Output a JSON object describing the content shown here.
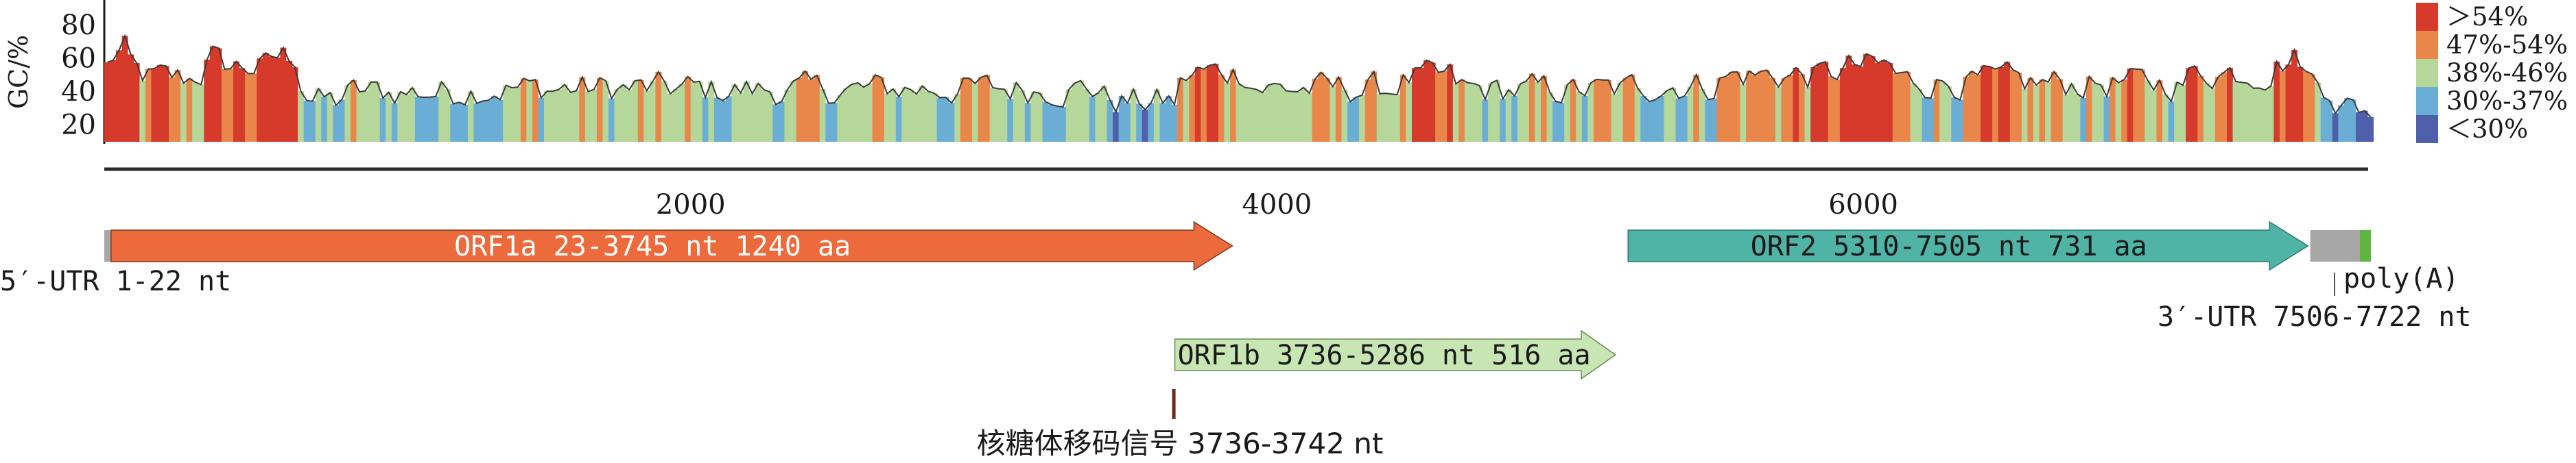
{
  "chart_data": {
    "type": "area",
    "ylabel": "GC/%",
    "y_ticks": [
      "20",
      "40",
      "60",
      "80"
    ],
    "x_ticks": [
      "2000",
      "4000",
      "6000"
    ],
    "xlim": [
      0,
      7722
    ],
    "ylim": [
      10,
      92
    ],
    "legend": {
      "placement": "right",
      "entries": [
        {
          "label": "＞54%",
          "color": "#d63a2a"
        },
        {
          "label": "47%-54%",
          "color": "#e9874a"
        },
        {
          "label": "38%-46%",
          "color": "#b5d79a"
        },
        {
          "label": "30%-37%",
          "color": "#6aaed6"
        },
        {
          "label": "＜30%",
          "color": "#4f5faa"
        }
      ]
    },
    "gc_profile": {
      "x_step_nt": 20,
      "region_means": [
        {
          "from": 0,
          "to": 80,
          "mean": 66
        },
        {
          "from": 80,
          "to": 300,
          "mean": 48
        },
        {
          "from": 300,
          "to": 330,
          "mean": 52
        },
        {
          "from": 330,
          "to": 380,
          "mean": 63
        },
        {
          "from": 380,
          "to": 560,
          "mean": 55
        },
        {
          "from": 560,
          "to": 660,
          "mean": 62
        },
        {
          "from": 660,
          "to": 800,
          "mean": 34
        },
        {
          "from": 800,
          "to": 1200,
          "mean": 40
        },
        {
          "from": 1200,
          "to": 2000,
          "mean": 42
        },
        {
          "from": 2000,
          "to": 2600,
          "mean": 41
        },
        {
          "from": 2600,
          "to": 3400,
          "mean": 42
        },
        {
          "from": 3400,
          "to": 3650,
          "mean": 34
        },
        {
          "from": 3650,
          "to": 3900,
          "mean": 52
        },
        {
          "from": 3900,
          "to": 4400,
          "mean": 42
        },
        {
          "from": 4400,
          "to": 4600,
          "mean": 48
        },
        {
          "from": 4600,
          "to": 5200,
          "mean": 41
        },
        {
          "from": 5200,
          "to": 5500,
          "mean": 44
        },
        {
          "from": 5500,
          "to": 5900,
          "mean": 50
        },
        {
          "from": 5900,
          "to": 6100,
          "mean": 55
        },
        {
          "from": 6100,
          "to": 6500,
          "mean": 46
        },
        {
          "from": 6500,
          "to": 7100,
          "mean": 45
        },
        {
          "from": 7100,
          "to": 7400,
          "mean": 52
        },
        {
          "from": 7400,
          "to": 7500,
          "mean": 60
        },
        {
          "from": 7500,
          "to": 7600,
          "mean": 44
        },
        {
          "from": 7600,
          "to": 7722,
          "mean": 30
        }
      ]
    }
  },
  "genome": {
    "length_nt": 7722,
    "features": [
      {
        "id": "orf1a",
        "label": "ORF1a 23-3745 nt 1240 aa",
        "start": 23,
        "end": 3745,
        "row": 1,
        "color": "#ec6a3c",
        "text_color": "light"
      },
      {
        "id": "orf2",
        "label": "ORF2 5310-7505 nt 731 aa",
        "start": 5310,
        "end": 7505,
        "row": 1,
        "color": "#4fb3a5",
        "text_color": "dark"
      },
      {
        "id": "orf1b",
        "label": "ORF1b 3736-5286 nt 516 aa",
        "start": 3736,
        "end": 5286,
        "row": 2,
        "color": "#c7e6b4",
        "text_color": "dark"
      }
    ],
    "utr5": {
      "label": "5′-UTR 1-22 nt",
      "start": 1,
      "end": 22,
      "color": "#a7a7a7"
    },
    "utr3": {
      "label": "3′-UTR 7506-7722 nt",
      "start": 7506,
      "end": 7722,
      "color": "#a7a7a7"
    },
    "polyA": {
      "label": "poly(A)",
      "color": "#5fb63f"
    },
    "frameshift": {
      "label": "核糖体移码信号 3736-3742 nt",
      "start": 3736,
      "end": 3742,
      "color": "#6b2a1a"
    }
  }
}
